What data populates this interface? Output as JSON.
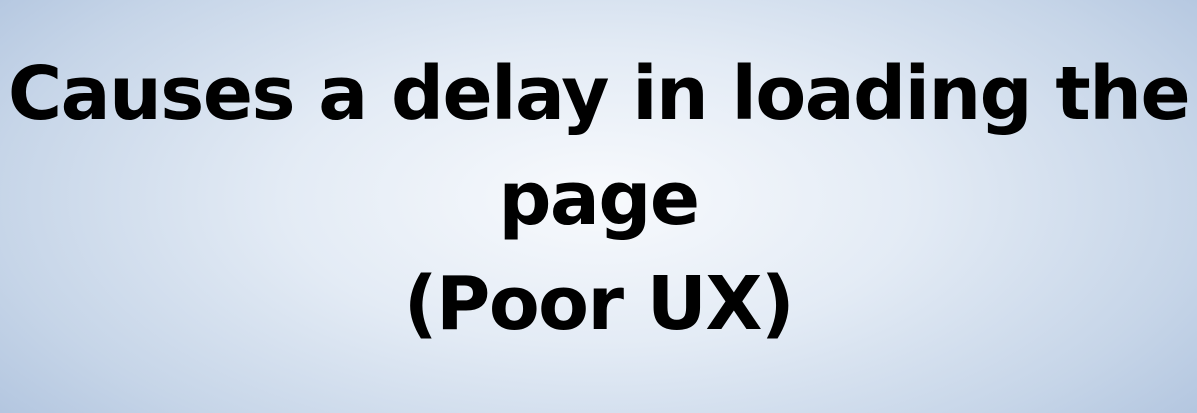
{
  "slide": {
    "lines": [
      "Causes a delay in loading the",
      "page",
      "(Poor UX)"
    ]
  }
}
